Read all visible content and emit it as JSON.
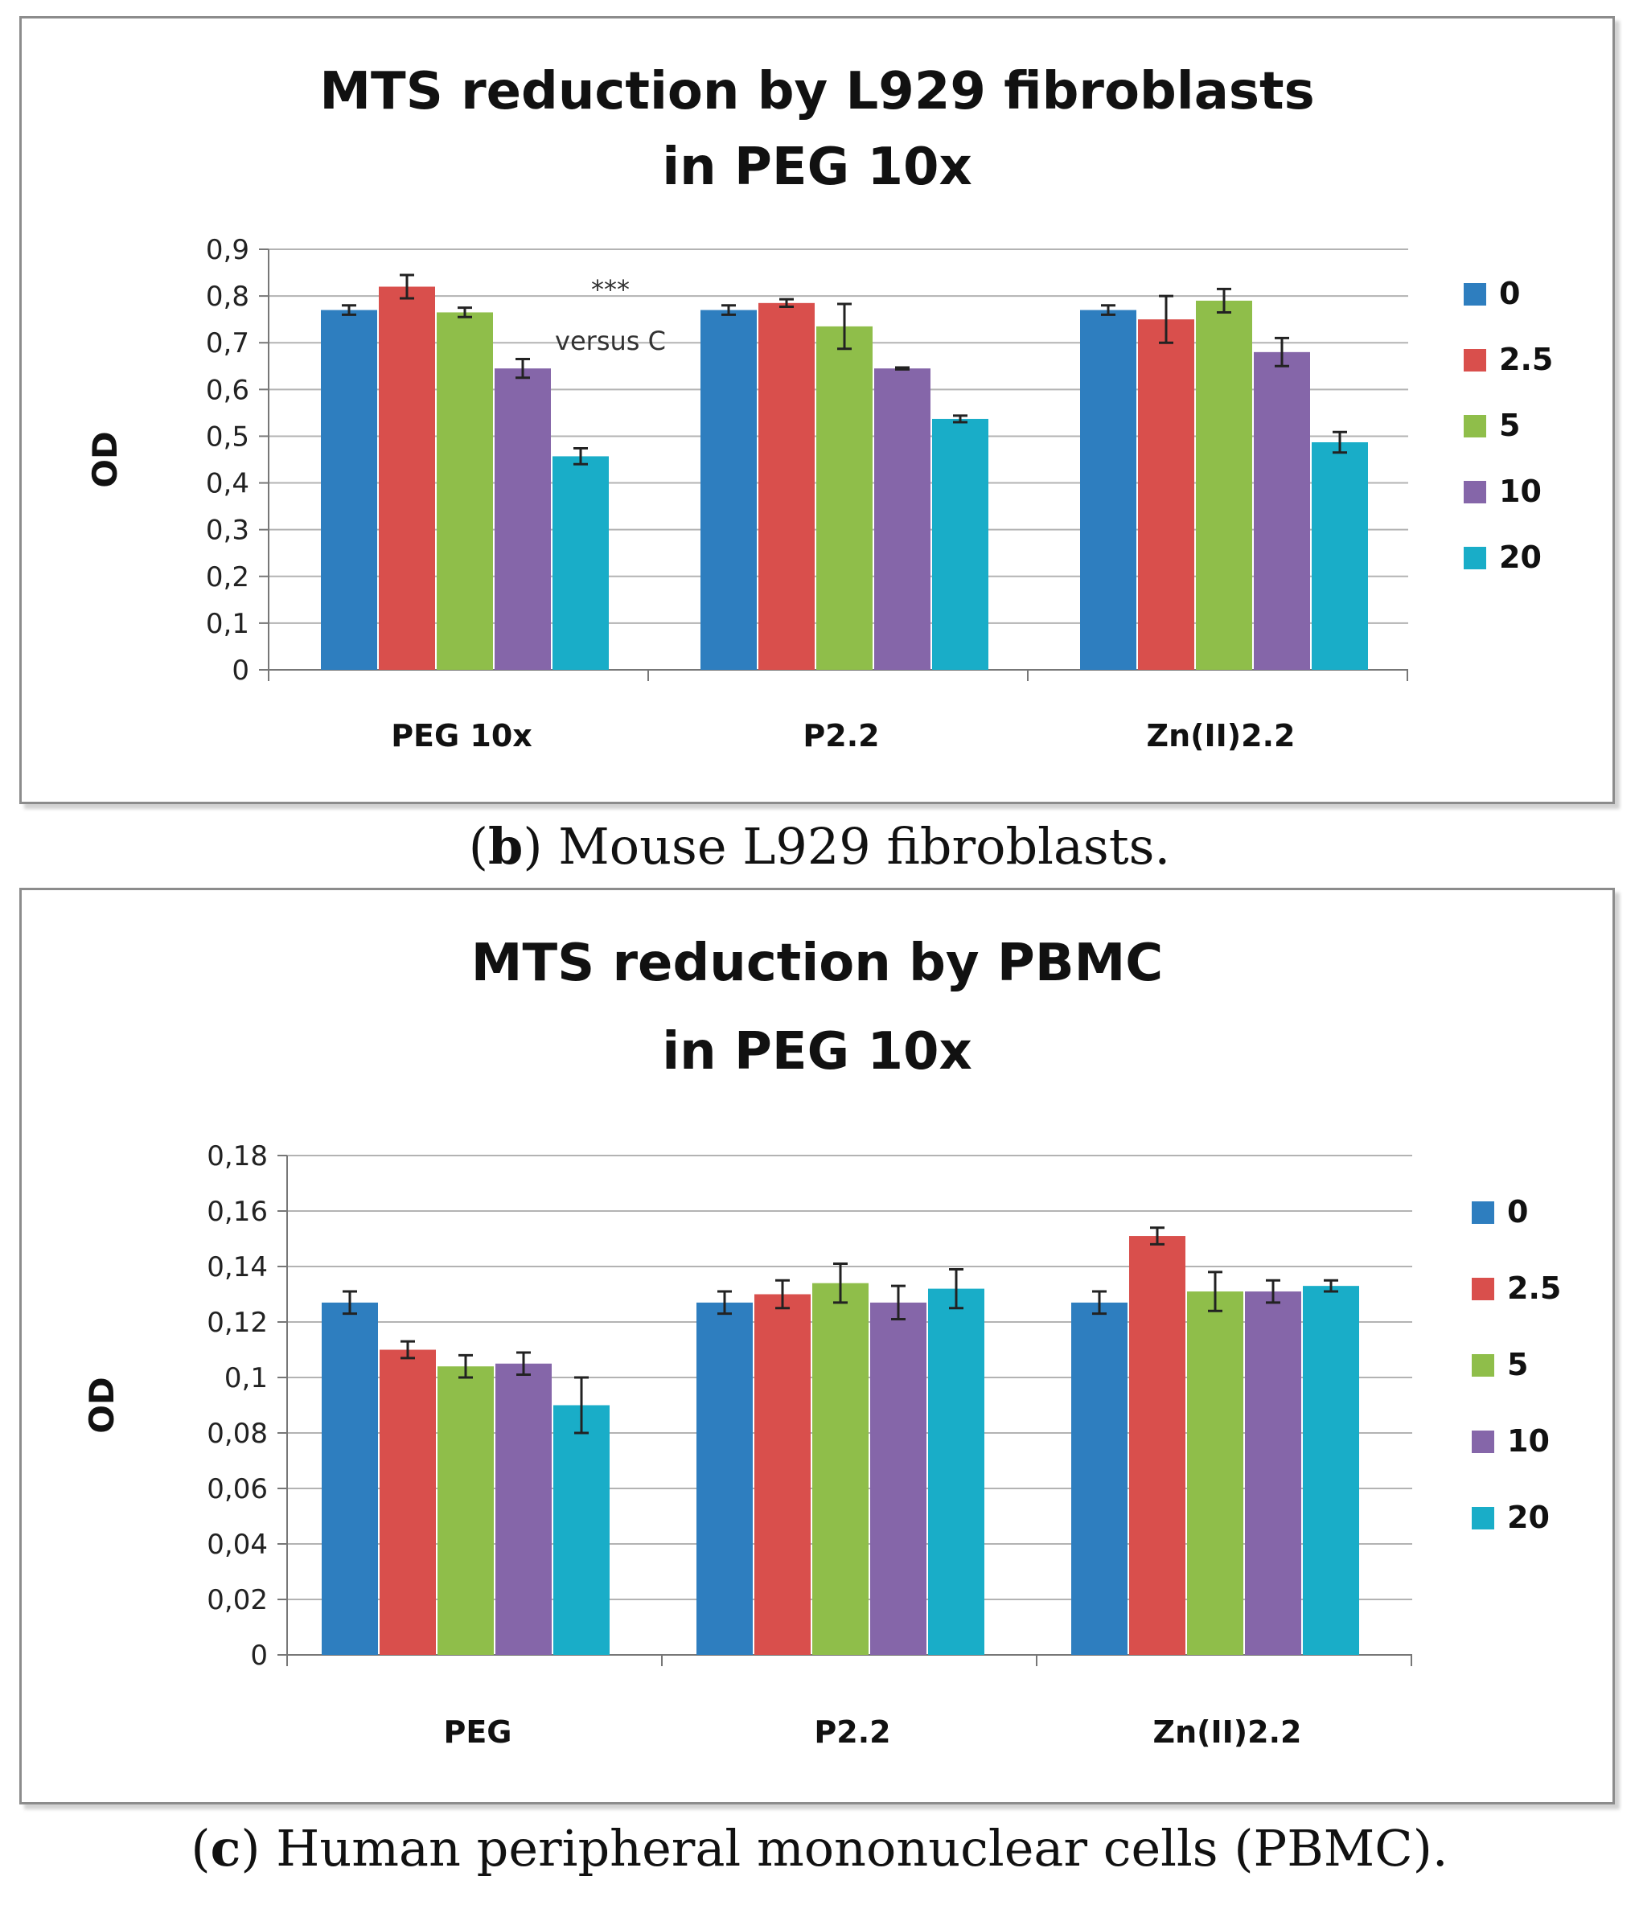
{
  "colors": {
    "series": [
      "#2e7ebf",
      "#d94f4c",
      "#8fbe4a",
      "#8566a9",
      "#19adc8"
    ],
    "grid": "#b3b3b3",
    "axis": "#777777",
    "error_bar": "#222222"
  },
  "chart_data": [
    {
      "type": "bar",
      "id": "b",
      "title": [
        "MTS reduction by L929 fibroblasts",
        "in PEG 10x"
      ],
      "ylabel": "OD",
      "xlabel": "",
      "ylim": [
        0,
        0.9
      ],
      "ytick_step": 0.1,
      "ytick_labels": [
        "0",
        "0,1",
        "0,2",
        "0,3",
        "0,4",
        "0,5",
        "0,6",
        "0,7",
        "0,8",
        "0,9"
      ],
      "grid": true,
      "legend_position": "right",
      "categories": [
        "PEG 10x",
        "P2.2",
        "Zn(II)2.2"
      ],
      "series": [
        {
          "name": "0",
          "values": [
            0.77,
            0.77,
            0.77
          ],
          "errors": [
            0.01,
            0.01,
            0.01
          ]
        },
        {
          "name": "2.5",
          "values": [
            0.82,
            0.785,
            0.75
          ],
          "errors": [
            0.025,
            0.008,
            0.05
          ]
        },
        {
          "name": "5",
          "values": [
            0.765,
            0.735,
            0.79
          ],
          "errors": [
            0.01,
            0.048,
            0.025
          ]
        },
        {
          "name": "10",
          "values": [
            0.645,
            0.645,
            0.68
          ],
          "errors": [
            0.02,
            0.002,
            0.03
          ]
        },
        {
          "name": "20",
          "values": [
            0.457,
            0.537,
            0.487
          ],
          "errors": [
            0.017,
            0.007,
            0.022
          ]
        }
      ],
      "annotations": [
        {
          "text": "***",
          "category": "PEG 10x",
          "y": 0.795
        },
        {
          "text": "versus C",
          "category": "PEG 10x",
          "y": 0.685
        }
      ]
    },
    {
      "type": "bar",
      "id": "c",
      "title": [
        "MTS reduction by PBMC",
        "in PEG 10x"
      ],
      "ylabel": "OD",
      "xlabel": "",
      "ylim": [
        0,
        0.18
      ],
      "ytick_step": 0.02,
      "ytick_labels": [
        "0",
        "0,02",
        "0,04",
        "0,06",
        "0,08",
        "0,1",
        "0,12",
        "0,14",
        "0,16",
        "0,18"
      ],
      "grid": true,
      "legend_position": "right",
      "categories": [
        "PEG",
        "P2.2",
        "Zn(II)2.2"
      ],
      "series": [
        {
          "name": "0",
          "values": [
            0.127,
            0.127,
            0.127
          ],
          "errors": [
            0.004,
            0.004,
            0.004
          ]
        },
        {
          "name": "2.5",
          "values": [
            0.11,
            0.13,
            0.151
          ],
          "errors": [
            0.003,
            0.005,
            0.003
          ]
        },
        {
          "name": "5",
          "values": [
            0.104,
            0.134,
            0.131
          ],
          "errors": [
            0.004,
            0.007,
            0.007
          ]
        },
        {
          "name": "10",
          "values": [
            0.105,
            0.127,
            0.131
          ],
          "errors": [
            0.004,
            0.006,
            0.004
          ]
        },
        {
          "name": "20",
          "values": [
            0.09,
            0.132,
            0.133
          ],
          "errors": [
            0.01,
            0.007,
            0.002
          ]
        }
      ],
      "annotations": []
    }
  ],
  "captions": [
    {
      "label": "b",
      "text": " Mouse L929 fibroblasts."
    },
    {
      "label": "c",
      "text": " Human peripheral mononuclear cells (PBMC)."
    }
  ]
}
